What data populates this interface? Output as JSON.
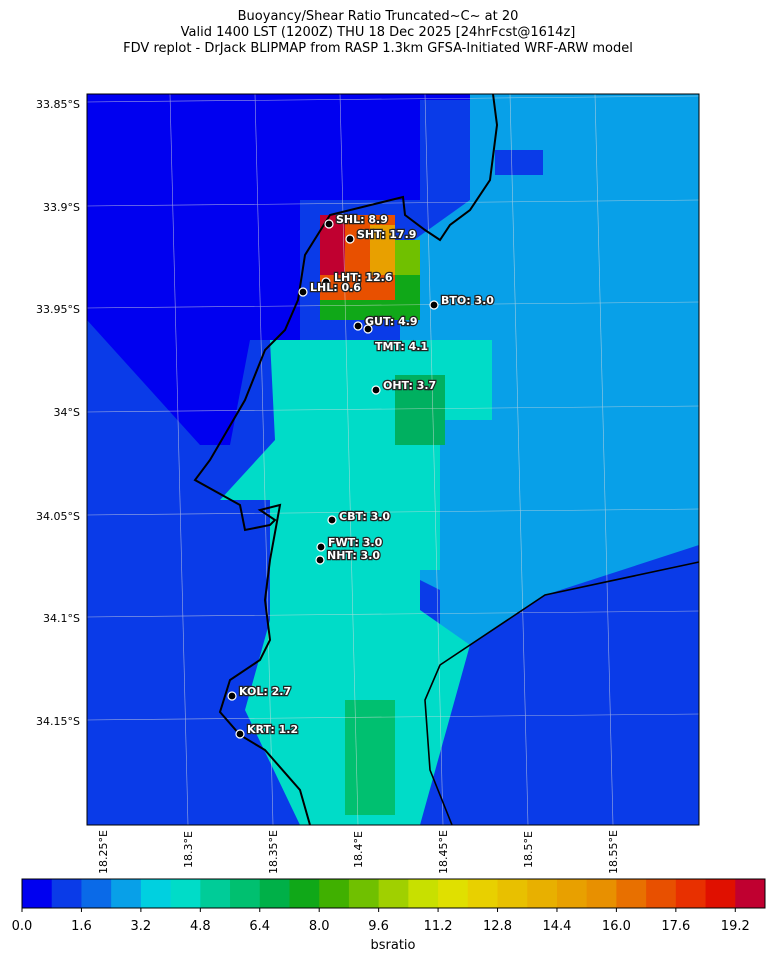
{
  "title": [
    "Buoyancy/Shear Ratio Truncated~C~    at 20",
    "Valid 1400 LST (1200Z) THU 18 Dec 2025 [24hrFcst@1614z]",
    "FDV replot - DrJack BLIPMAP from RASP 1.3km GFSA-Initiated WRF-ARW model"
  ],
  "lat_labels": [
    "33.85°S",
    "33.9°S",
    "33.95°S",
    "34°S",
    "34.05°S",
    "34.1°S",
    "34.15°S"
  ],
  "lon_labels": [
    "18.25°E",
    "18.3°E",
    "18.35°E",
    "18.4°E",
    "18.45°E",
    "18.5°E",
    "18.55°E"
  ],
  "stations": [
    "SHL: 8.9",
    "SHT: 17.9",
    "LHT: 12.6",
    "LHL: 0.6",
    "BTO: 3.0",
    "GUT: 4.9",
    "TMT: 4.1",
    "OHT: 3.7",
    "CBT: 3.0",
    "FWT: 3.0",
    "NHT: 3.0",
    "KOL: 2.7",
    "KRT: 1.2"
  ],
  "colorbar": {
    "label": "bsratio",
    "range": [
      0,
      20
    ],
    "colors": [
      "#0000f0",
      "#0a3be8",
      "#0a6ae8",
      "#08a0e8",
      "#00d0e0",
      "#00dcc8",
      "#00cc98",
      "#00c070",
      "#00b048",
      "#10a818",
      "#40b000",
      "#70c000",
      "#a0d000",
      "#c8e000",
      "#e0e000",
      "#e8d000",
      "#e8c000",
      "#e8b000",
      "#e8a000",
      "#e89000",
      "#e87000",
      "#e85000",
      "#e83000",
      "#e01000",
      "#c00030"
    ],
    "ticks": [
      {
        "value": 0,
        "label": "0.0"
      },
      {
        "value": 1.6,
        "label": "1.6"
      },
      {
        "value": 3.2,
        "label": "3.2"
      },
      {
        "value": 4.8,
        "label": "4.8"
      },
      {
        "value": 6.4,
        "label": "6.4"
      },
      {
        "value": 8,
        "label": "8.0"
      },
      {
        "value": 9.6,
        "label": "9.6"
      },
      {
        "value": 11.2,
        "label": "11.2"
      },
      {
        "value": 12.8,
        "label": "12.8"
      },
      {
        "value": 14.4,
        "label": "14.4"
      },
      {
        "value": 16,
        "label": "16.0"
      },
      {
        "value": 17.6,
        "label": "17.6"
      },
      {
        "value": 19.2,
        "label": "19.2"
      }
    ]
  }
}
